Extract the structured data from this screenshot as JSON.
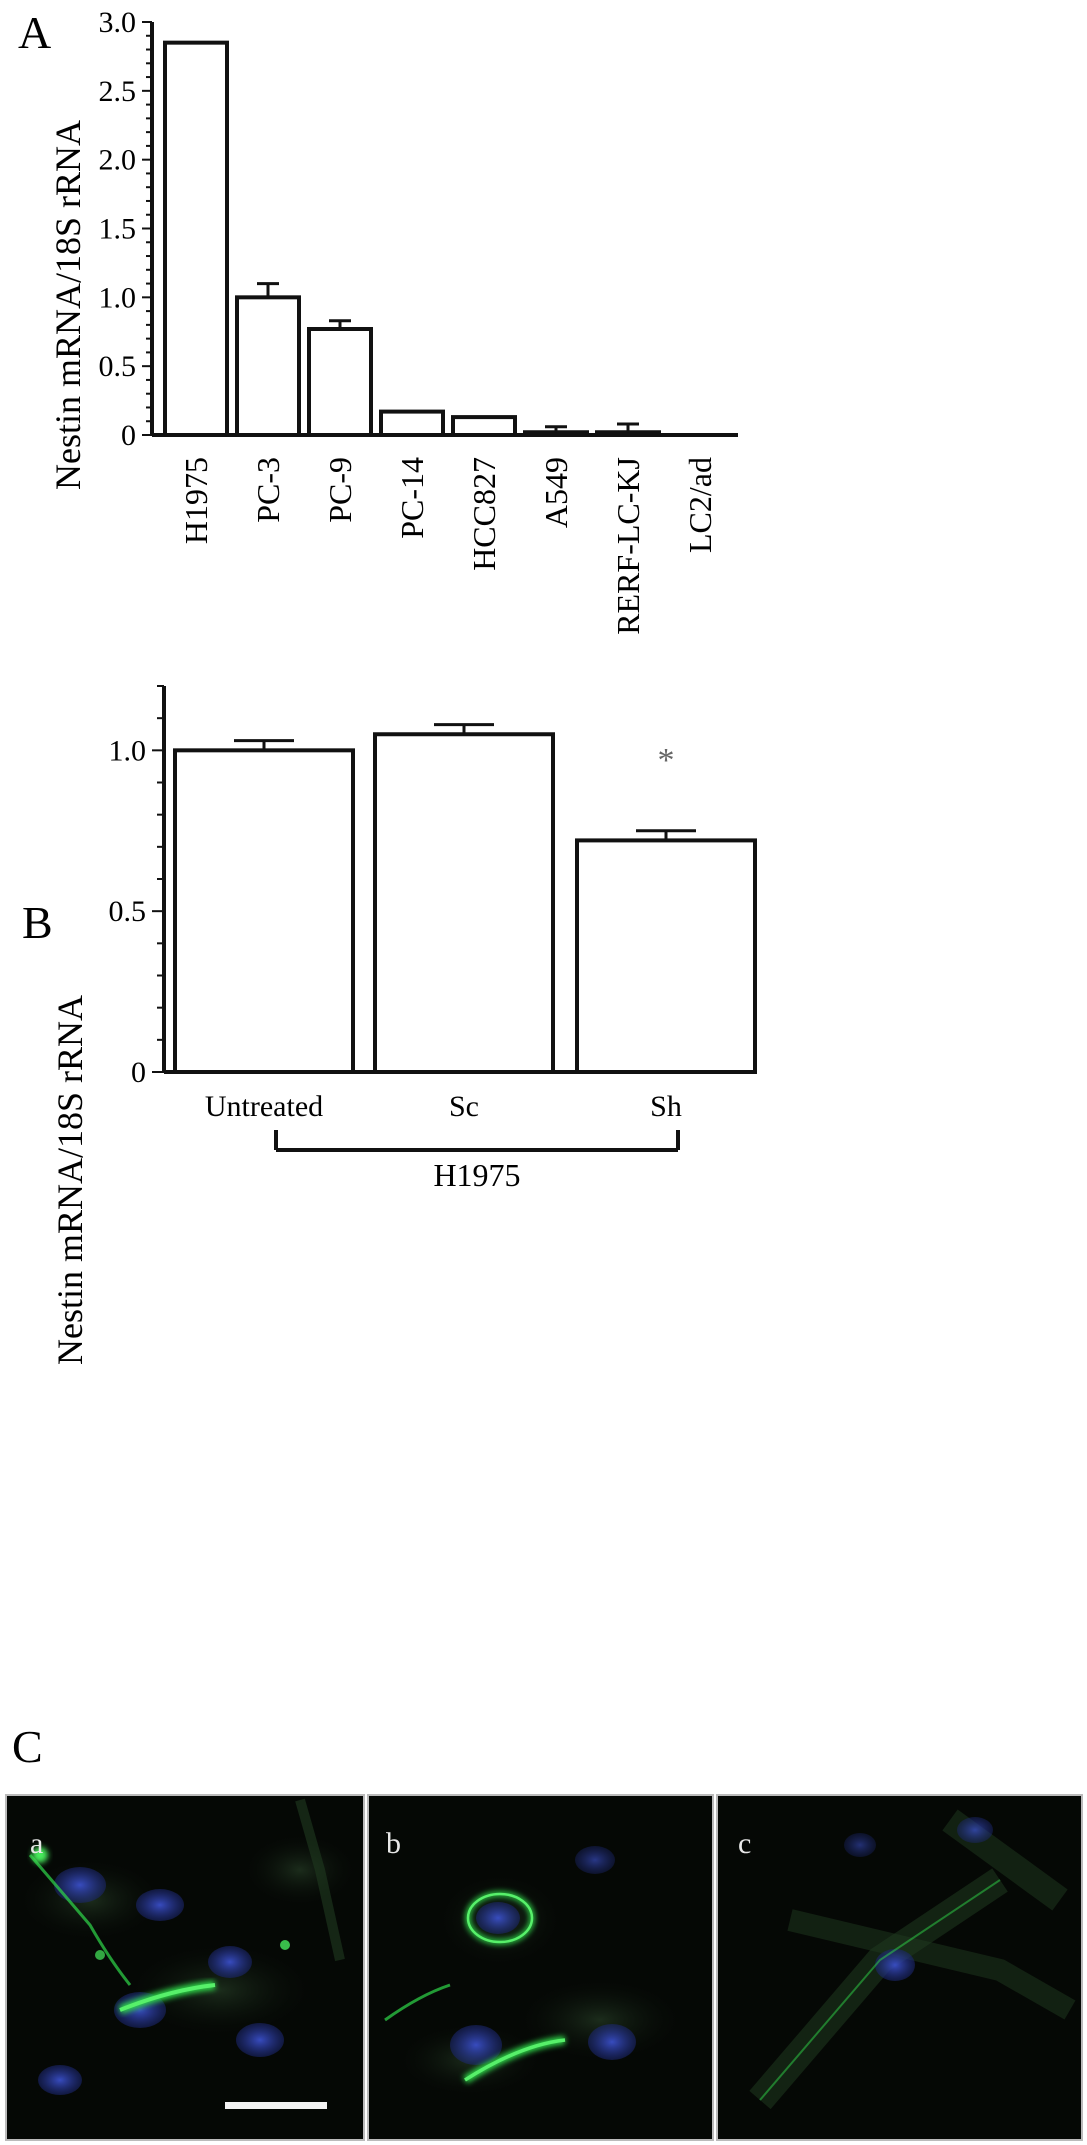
{
  "figure": {
    "panel_labels": [
      "A",
      "B",
      "C"
    ],
    "colors": {
      "bar_fill": "#ffffff",
      "ink": "#111111",
      "image_bg": "#050805",
      "nuclei": "#2a3ea8",
      "nestin_stain": "#2fd84a"
    }
  },
  "chart_data": [
    {
      "panel": "A",
      "type": "bar",
      "ylabel": "Nestin mRNA/18S rRNA",
      "xlabel": "",
      "ylim": [
        0,
        3.0
      ],
      "yticks": [
        0,
        0.5,
        1.0,
        1.5,
        2.0,
        2.5,
        3.0
      ],
      "ytick_labels": [
        "0",
        "0.5",
        "1.0",
        "1.5",
        "2.0",
        "2.5",
        "3.0"
      ],
      "categories": [
        "H1975",
        "PC-3",
        "PC-9",
        "PC-14",
        "HCC827",
        "A549",
        "RERF-LC-KJ",
        "LC2/ad"
      ],
      "values": [
        2.85,
        1.0,
        0.77,
        0.17,
        0.13,
        0.02,
        0.02,
        0.0
      ],
      "error_upper": [
        0,
        0.1,
        0.06,
        0,
        0,
        0.04,
        0.06,
        0
      ],
      "grid": false,
      "legend": "none"
    },
    {
      "panel": "B",
      "type": "bar",
      "ylabel": "Nestin mRNA/18S rRNA",
      "xlabel": "",
      "ylim": [
        0,
        1.2
      ],
      "yticks": [
        0,
        0.5,
        1.0
      ],
      "ytick_labels": [
        "0",
        "0.5",
        "1.0"
      ],
      "categories": [
        "Untreated",
        "Sc",
        "Sh"
      ],
      "values": [
        1.0,
        1.05,
        0.72
      ],
      "error_upper": [
        0.03,
        0.03,
        0.03
      ],
      "significance": [
        "",
        "",
        "*"
      ],
      "group_label": "H1975",
      "grid": false,
      "legend": "none"
    }
  ],
  "panel_c": {
    "tiles": [
      {
        "label": "a"
      },
      {
        "label": "b"
      },
      {
        "label": "c"
      }
    ]
  }
}
